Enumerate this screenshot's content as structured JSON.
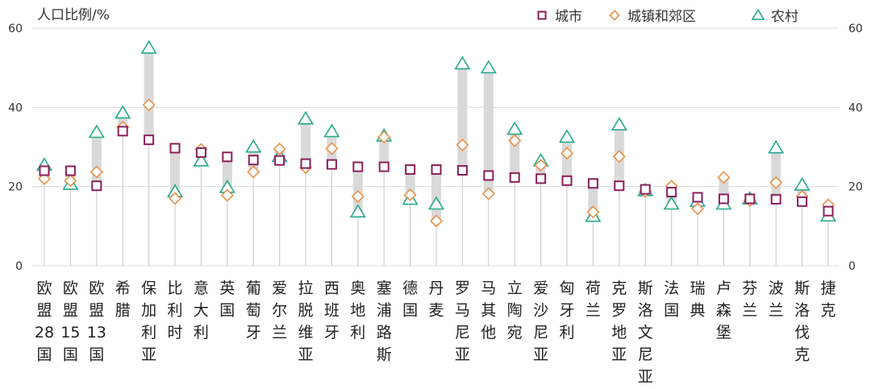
{
  "chart_data": {
    "type": "scatter",
    "ylabel": "人口比例/%",
    "ylim": [
      0,
      60
    ],
    "yticks": [
      0,
      20,
      40,
      60
    ],
    "grid": true,
    "legend_position": "top-right",
    "categories": [
      "欧盟28国",
      "欧盟15国",
      "欧盟13国",
      "希腊",
      "保加利亚",
      "比利时",
      "意大利",
      "英国",
      "葡萄牙",
      "爱尔兰",
      "拉脱维亚",
      "西班牙",
      "奥地利",
      "塞浦路斯",
      "德国",
      "丹麦",
      "罗马尼亚",
      "马其他",
      "立陶宛",
      "爱沙尼亚",
      "匈牙利",
      "荷兰",
      "克罗地亚",
      "斯洛文尼亚",
      "法国",
      "瑞典",
      "卢森堡",
      "芬兰",
      "波兰",
      "斯洛伐克",
      "捷克"
    ],
    "series": [
      {
        "name": "城市",
        "color": "#8B1F5C",
        "marker": "square",
        "values": [
          24,
          24,
          20.2,
          34,
          31.8,
          29.7,
          28.6,
          27.5,
          26.7,
          26.6,
          25.8,
          25.6,
          25,
          25,
          24.3,
          24.3,
          24.1,
          22.8,
          22.3,
          22,
          21.5,
          20.8,
          20.2,
          19.3,
          18.6,
          17.3,
          16.9,
          16.9,
          16.8,
          16.2,
          13.8
        ]
      },
      {
        "name": "城镇和郊区",
        "color": "#E8924A",
        "marker": "diamond",
        "values": [
          22,
          21.5,
          23.7,
          35,
          40.6,
          17,
          29.4,
          17.8,
          23.7,
          29.5,
          24.8,
          29.6,
          17.5,
          32.5,
          17.9,
          11.3,
          30.5,
          18.2,
          31.6,
          25.4,
          28.4,
          13.6,
          27.6,
          18.8,
          20.1,
          14.4,
          22.3,
          16.5,
          21,
          17.5,
          15.4
        ]
      },
      {
        "name": "农村",
        "color": "#27A98B",
        "marker": "triangle",
        "values": [
          25.4,
          20.6,
          33.7,
          38.6,
          55,
          18.7,
          26.5,
          19.8,
          30,
          27.6,
          37.1,
          33.9,
          13.6,
          32.8,
          16.8,
          15.6,
          51,
          50,
          34.5,
          26.5,
          32.5,
          12.5,
          35.6,
          19,
          15.6,
          16.3,
          15.6,
          16.9,
          29.8,
          20.4,
          12.6
        ]
      }
    ]
  }
}
